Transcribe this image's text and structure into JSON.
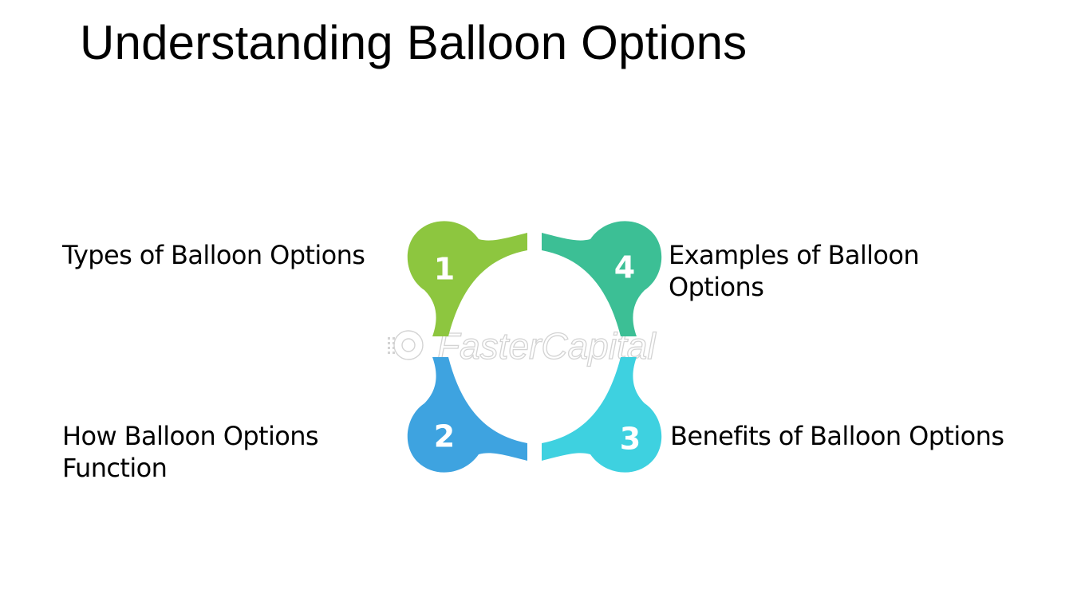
{
  "title": "Understanding Balloon Options",
  "items": [
    {
      "number": "1",
      "label": "Types of Balloon Options",
      "color": "#8dc63f"
    },
    {
      "number": "2",
      "label": "How Balloon Options Function",
      "color": "#3ea3e0"
    },
    {
      "number": "3",
      "label": "Benefits of Balloon Options",
      "color": "#3ed1e0"
    },
    {
      "number": "4",
      "label": "Examples of Balloon Options",
      "color": "#3cbf95"
    }
  ],
  "watermark": {
    "text": "FasterCapital",
    "color": "#cfcfcf"
  }
}
